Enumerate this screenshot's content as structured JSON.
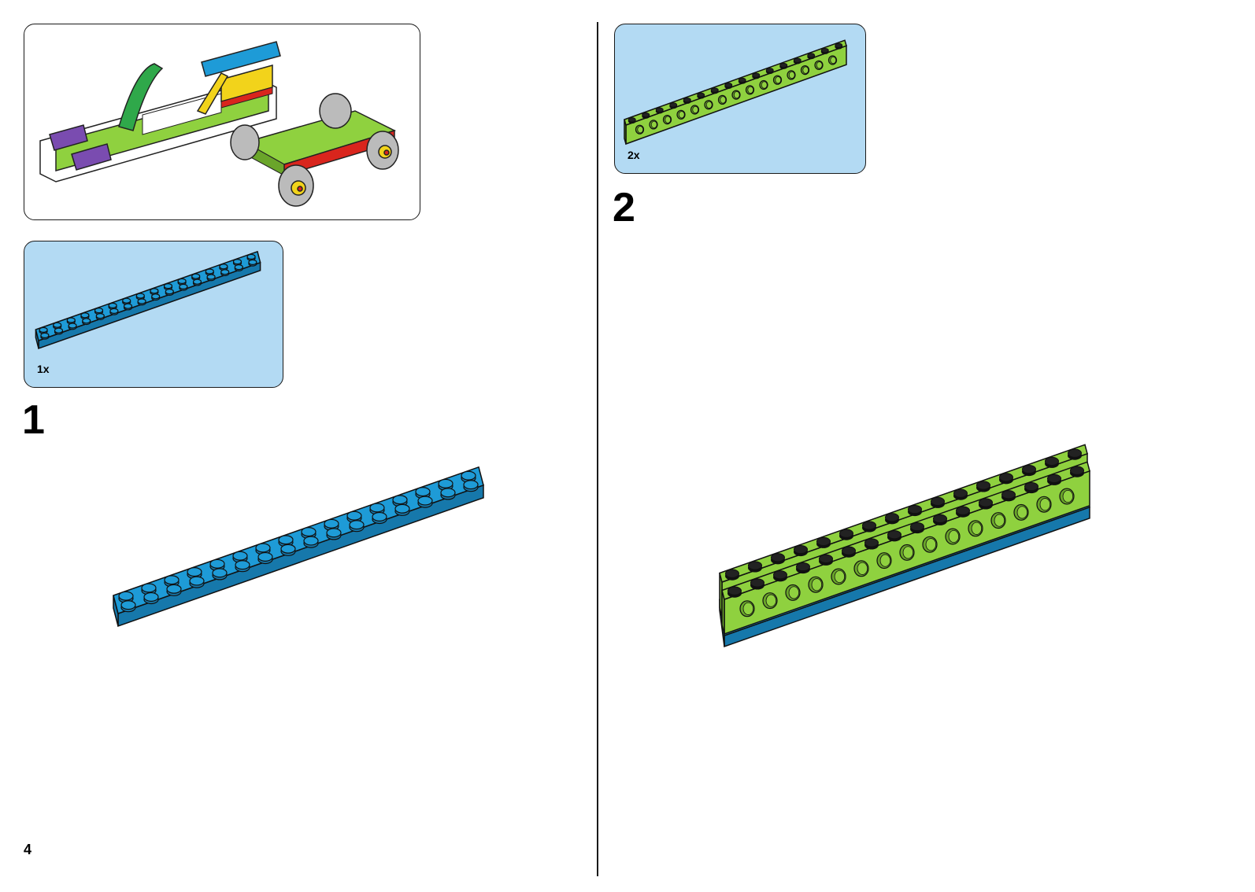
{
  "left_page": {
    "page_number": "4",
    "step": {
      "number": "1",
      "parts_callout": {
        "quantity": "1x",
        "part": "plate-2x16",
        "color": "#1e9bd7"
      }
    }
  },
  "right_page": {
    "step": {
      "number": "2",
      "parts_callout": {
        "quantity": "2x",
        "part": "technic-brick-1x16",
        "color": "#8fd13f"
      }
    }
  },
  "colors": {
    "plate_blue": "#1e9bd7",
    "brick_green": "#8fd13f",
    "parts_bg": "#b3daf3"
  }
}
